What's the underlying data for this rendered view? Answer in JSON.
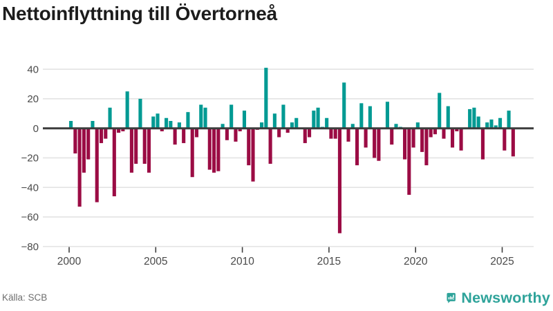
{
  "title": "Nettoinflyttning till Övertorneå",
  "source": "Källa: SCB",
  "logo": {
    "text": "Newsworthy",
    "icon": "bar-chart-speech-bubble"
  },
  "colors": {
    "positive": "#009a93",
    "negative": "#9b0c44",
    "grid": "#e3e3e3",
    "zero_line": "#3d3d3d",
    "axis_text": "#4a4a4a",
    "tick_mark": "#3d3d3d",
    "title_text": "#1c1c1c",
    "source_text": "#6e6e6e",
    "logo_teal": "#2ea39a"
  },
  "chart_data": {
    "type": "bar",
    "title": "Nettoinflyttning till Övertorneå",
    "xlabel": "",
    "ylabel": "",
    "x_unit": "quarter",
    "x_start_year": 2000,
    "x_start_quarter": 1,
    "ylim": [
      -80,
      45
    ],
    "grid": true,
    "ytick_labels": [
      "40",
      "20",
      "0",
      "−20",
      "−40",
      "−60",
      "−80"
    ],
    "yticks": [
      40,
      20,
      0,
      -20,
      -40,
      -60,
      -80
    ],
    "xtick_labels": [
      "2000",
      "2005",
      "2010",
      "2015",
      "2020",
      "2025"
    ],
    "xticks": [
      2000,
      2005,
      2010,
      2015,
      2020,
      2025
    ],
    "values": [
      5,
      -17,
      -53,
      -30,
      -21,
      5,
      -50,
      -10,
      -7,
      14,
      -46,
      -3,
      -2,
      25,
      -30,
      -24,
      20,
      -24,
      -30,
      8,
      10,
      -2,
      7,
      5,
      -11,
      4,
      -10,
      11,
      -33,
      -6,
      16,
      14,
      -28,
      -30,
      -29,
      3,
      -8,
      16,
      -9,
      -2,
      12,
      -25,
      -36,
      -1,
      4,
      41,
      -24,
      10,
      -6,
      16,
      -3,
      4,
      7,
      0,
      -10,
      -6,
      12,
      14,
      1,
      7,
      -7,
      -7,
      -71,
      31,
      -9,
      3,
      -25,
      17,
      -13,
      15,
      -20,
      -22,
      0,
      18,
      -11,
      3,
      1,
      -21,
      -45,
      -13,
      4,
      -16,
      -25,
      -6,
      -4,
      24,
      -7,
      15,
      -13,
      -2,
      -15,
      0,
      13,
      14,
      8,
      -21,
      4,
      6,
      2,
      7,
      -15,
      12,
      -19
    ]
  }
}
